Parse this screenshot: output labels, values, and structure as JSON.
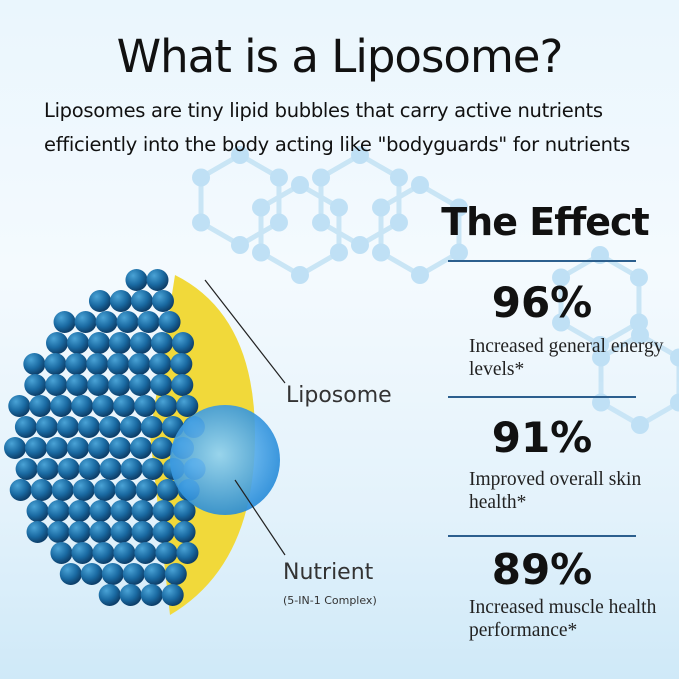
{
  "header": {
    "title": "What is a Liposome?",
    "subtitle": "Liposomes are tiny lipid bubbles that carry active nutrients efficiently into the body acting like \"bodyguards\" for nutrients"
  },
  "diagram": {
    "liposome_label": "Liposome",
    "nutrient_label": "Nutrient",
    "nutrient_sublabel": "(5-IN-1 Complex)",
    "colors": {
      "head": "#1d6fa8",
      "tail": "#f2d83a",
      "core": "#4fb2ef",
      "pointer": "#222222"
    }
  },
  "effect": {
    "title": "The Effect",
    "stats": [
      {
        "value": "96%",
        "description": "Increased general energy levels*"
      },
      {
        "value": "91%",
        "description": "Improved overall skin health*"
      },
      {
        "value": "89%",
        "description": "Increased muscle health performance*"
      }
    ],
    "rule_color": "#2c5f8e"
  }
}
